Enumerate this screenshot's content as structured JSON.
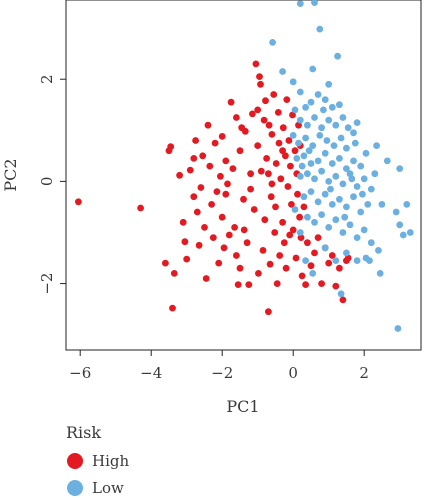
{
  "chart_data": {
    "type": "scatter",
    "xlabel": "PC1",
    "ylabel": "PC2",
    "xlim": [
      -6.4,
      3.6
    ],
    "ylim": [
      -3.3,
      3.55
    ],
    "xticks": [
      -6,
      -4,
      -2,
      0,
      2
    ],
    "yticks": [
      -2,
      0,
      2
    ],
    "grid": false,
    "legend": {
      "title": "Risk",
      "position": "bottom-left"
    },
    "series": [
      {
        "name": "High",
        "color": "#e41a22",
        "points": [
          [
            -6.05,
            -0.4
          ],
          [
            -4.3,
            -0.52
          ],
          [
            -3.5,
            0.6
          ],
          [
            -3.45,
            0.68
          ],
          [
            -3.6,
            -1.6
          ],
          [
            -3.4,
            -2.48
          ],
          [
            -3.35,
            -1.8
          ],
          [
            -3.2,
            0.12
          ],
          [
            -3.1,
            -0.8
          ],
          [
            -3.05,
            -1.18
          ],
          [
            -3.0,
            -1.52
          ],
          [
            -2.9,
            0.22
          ],
          [
            -2.8,
            -0.3
          ],
          [
            -2.75,
            0.8
          ],
          [
            -2.7,
            -0.6
          ],
          [
            -2.65,
            -1.25
          ],
          [
            -2.6,
            -0.12
          ],
          [
            -2.55,
            0.5
          ],
          [
            -2.5,
            -0.9
          ],
          [
            -2.45,
            -1.9
          ],
          [
            -2.4,
            1.1
          ],
          [
            -2.35,
            0.3
          ],
          [
            -2.3,
            -0.45
          ],
          [
            -2.25,
            -1.1
          ],
          [
            -2.2,
            0.75
          ],
          [
            -2.15,
            -0.2
          ],
          [
            -2.1,
            -1.6
          ],
          [
            -2.05,
            0.1
          ],
          [
            -2.0,
            -0.7
          ],
          [
            -1.95,
            -1.3
          ],
          [
            -1.9,
            0.4
          ],
          [
            -1.85,
            -0.05
          ],
          [
            -1.8,
            -1.05
          ],
          [
            -1.75,
            1.55
          ],
          [
            -1.7,
            0.25
          ],
          [
            -1.65,
            -0.9
          ],
          [
            -1.6,
            -1.45
          ],
          [
            -1.55,
            -2.02
          ],
          [
            -1.5,
            0.6
          ],
          [
            -1.45,
            1.05
          ],
          [
            -1.4,
            -0.35
          ],
          [
            -1.38,
            -0.95
          ],
          [
            -1.35,
            0.98
          ],
          [
            -1.3,
            -1.2
          ],
          [
            -1.25,
            -2.02
          ],
          [
            -1.2,
            0.15
          ],
          [
            -1.15,
            1.32
          ],
          [
            -1.1,
            -0.55
          ],
          [
            -1.05,
            2.3
          ],
          [
            -1.0,
            0.7
          ],
          [
            -0.98,
            -1.8
          ],
          [
            -0.95,
            2.05
          ],
          [
            -0.92,
            1.9
          ],
          [
            -0.9,
            0.2
          ],
          [
            -0.85,
            -1.35
          ],
          [
            -0.82,
            1.2
          ],
          [
            -0.8,
            -0.75
          ],
          [
            -0.78,
            1.58
          ],
          [
            -0.75,
            0.45
          ],
          [
            -0.7,
            -2.55
          ],
          [
            -0.68,
            1.1
          ],
          [
            -0.65,
            -1.62
          ],
          [
            -0.62,
            -0.3
          ],
          [
            -0.6,
            0.92
          ],
          [
            -0.55,
            1.7
          ],
          [
            -0.52,
            -1.0
          ],
          [
            -0.5,
            -0.5
          ],
          [
            -0.48,
            0.35
          ],
          [
            -0.45,
            -2.0
          ],
          [
            -0.42,
            1.35
          ],
          [
            -0.4,
            0.75
          ],
          [
            -0.38,
            -1.45
          ],
          [
            -0.35,
            0.05
          ],
          [
            -0.3,
            -0.8
          ],
          [
            -0.28,
            1.05
          ],
          [
            -0.25,
            -1.2
          ],
          [
            -0.22,
            0.5
          ],
          [
            -0.2,
            -1.7
          ],
          [
            -0.18,
            1.6
          ],
          [
            -0.15,
            -0.1
          ],
          [
            -0.12,
            0.8
          ],
          [
            -0.1,
            -1.05
          ],
          [
            -0.08,
            0.3
          ],
          [
            -0.05,
            -0.45
          ],
          [
            -0.02,
            1.3
          ],
          [
            0.0,
            -0.95
          ],
          [
            0.05,
            0.6
          ],
          [
            0.08,
            -1.5
          ],
          [
            0.1,
            0.15
          ],
          [
            0.12,
            -0.25
          ],
          [
            0.15,
            1.1
          ],
          [
            0.18,
            -0.7
          ],
          [
            0.2,
            0.7
          ],
          [
            0.22,
            -1.1
          ],
          [
            0.25,
            -1.85
          ],
          [
            0.3,
            -0.5
          ],
          [
            0.35,
            -2.02
          ],
          [
            0.4,
            -1.2
          ],
          [
            0.5,
            -1.65
          ],
          [
            0.6,
            -1.4
          ],
          [
            0.7,
            -1.1
          ],
          [
            0.8,
            -2.0
          ],
          [
            0.9,
            -1.3
          ],
          [
            1.0,
            -1.6
          ],
          [
            1.1,
            -1.45
          ],
          [
            1.2,
            -2.05
          ],
          [
            1.3,
            -1.7
          ],
          [
            1.4,
            -2.32
          ],
          [
            1.5,
            -1.55
          ],
          [
            1.55,
            -1.5
          ],
          [
            -2.0,
            0.88
          ],
          [
            -1.6,
            1.25
          ],
          [
            -1.2,
            -0.15
          ],
          [
            -0.6,
            -0.05
          ],
          [
            -1.9,
            -0.25
          ],
          [
            -2.8,
            0.45
          ],
          [
            -0.3,
            0.6
          ],
          [
            -1.0,
            1.4
          ],
          [
            -0.7,
            0.15
          ],
          [
            -1.5,
            -1.7
          ]
        ]
      },
      {
        "name": "Low",
        "color": "#6bb0e0",
        "points": [
          [
            0.2,
            3.48
          ],
          [
            0.6,
            3.5
          ],
          [
            0.75,
            2.98
          ],
          [
            1.25,
            2.45
          ],
          [
            -0.58,
            2.72
          ],
          [
            -0.3,
            2.15
          ],
          [
            0.0,
            1.95
          ],
          [
            0.2,
            1.75
          ],
          [
            0.35,
            1.45
          ],
          [
            0.5,
            1.55
          ],
          [
            0.7,
            1.7
          ],
          [
            0.9,
            1.6
          ],
          [
            1.1,
            1.45
          ],
          [
            1.3,
            1.5
          ],
          [
            0.05,
            1.4
          ],
          [
            0.2,
            1.2
          ],
          [
            0.4,
            1.1
          ],
          [
            0.6,
            1.25
          ],
          [
            0.8,
            1.05
          ],
          [
            1.0,
            1.2
          ],
          [
            1.2,
            1.1
          ],
          [
            1.4,
            1.25
          ],
          [
            1.55,
            1.05
          ],
          [
            1.7,
            0.95
          ],
          [
            0.0,
            0.9
          ],
          [
            0.15,
            0.75
          ],
          [
            0.35,
            0.85
          ],
          [
            0.55,
            0.7
          ],
          [
            0.75,
            0.9
          ],
          [
            0.95,
            0.8
          ],
          [
            1.15,
            0.7
          ],
          [
            1.35,
            0.85
          ],
          [
            1.5,
            0.65
          ],
          [
            1.75,
            0.75
          ],
          [
            0.1,
            0.45
          ],
          [
            0.3,
            0.5
          ],
          [
            0.5,
            0.35
          ],
          [
            0.7,
            0.4
          ],
          [
            0.9,
            0.55
          ],
          [
            1.1,
            0.35
          ],
          [
            1.3,
            0.45
          ],
          [
            1.5,
            0.25
          ],
          [
            1.7,
            0.4
          ],
          [
            1.9,
            0.3
          ],
          [
            2.05,
            0.55
          ],
          [
            0.2,
            0.1
          ],
          [
            0.4,
            0.15
          ],
          [
            0.6,
            0.05
          ],
          [
            0.8,
            0.2
          ],
          [
            1.0,
            0.0
          ],
          [
            1.2,
            0.1
          ],
          [
            1.4,
            -0.05
          ],
          [
            1.6,
            0.15
          ],
          [
            1.8,
            -0.1
          ],
          [
            2.0,
            0.05
          ],
          [
            2.2,
            -0.15
          ],
          [
            0.3,
            -0.3
          ],
          [
            0.5,
            -0.2
          ],
          [
            0.7,
            -0.4
          ],
          [
            0.9,
            -0.25
          ],
          [
            1.1,
            -0.45
          ],
          [
            1.3,
            -0.35
          ],
          [
            1.5,
            -0.5
          ],
          [
            1.7,
            -0.3
          ],
          [
            1.9,
            -0.6
          ],
          [
            2.1,
            -0.45
          ],
          [
            0.4,
            -0.7
          ],
          [
            0.6,
            -0.8
          ],
          [
            0.8,
            -0.65
          ],
          [
            1.0,
            -0.9
          ],
          [
            1.2,
            -0.75
          ],
          [
            1.4,
            -1.0
          ],
          [
            1.6,
            -0.85
          ],
          [
            1.8,
            -1.1
          ],
          [
            2.0,
            -0.95
          ],
          [
            2.2,
            -1.2
          ],
          [
            2.4,
            -1.35
          ],
          [
            0.9,
            -1.3
          ],
          [
            1.2,
            -1.55
          ],
          [
            1.5,
            -1.4
          ],
          [
            1.8,
            -1.55
          ],
          [
            2.05,
            -1.5
          ],
          [
            2.15,
            -1.55
          ],
          [
            2.5,
            -0.45
          ],
          [
            2.9,
            -0.6
          ],
          [
            3.0,
            -0.85
          ],
          [
            3.3,
            -1.0
          ],
          [
            3.1,
            -1.05
          ],
          [
            3.2,
            -0.45
          ],
          [
            3.0,
            0.25
          ],
          [
            2.35,
            0.7
          ],
          [
            2.65,
            0.4
          ],
          [
            1.8,
            1.15
          ],
          [
            1.0,
            1.9
          ],
          [
            0.55,
            2.2
          ],
          [
            0.35,
            -1.55
          ],
          [
            0.55,
            -1.8
          ],
          [
            0.2,
            -1.0
          ],
          [
            0.05,
            -0.55
          ],
          [
            1.35,
            -2.2
          ],
          [
            2.95,
            -2.88
          ],
          [
            2.45,
            -1.8
          ],
          [
            1.65,
            0.05
          ],
          [
            0.85,
            1.4
          ],
          [
            0.45,
            0.6
          ],
          [
            1.05,
            -0.15
          ],
          [
            1.45,
            -0.7
          ],
          [
            0.25,
            0.3
          ],
          [
            2.3,
            0.15
          ],
          [
            1.95,
            -0.25
          ]
        ]
      }
    ]
  }
}
